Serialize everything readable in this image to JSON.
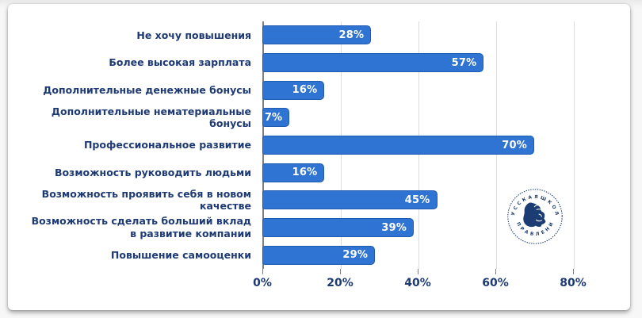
{
  "chart_data": {
    "type": "bar",
    "orientation": "horizontal",
    "title": "",
    "xlabel": "",
    "ylabel": "",
    "categories": [
      "Не хочу повышения",
      "Более высокая зарплата",
      "Дополнительные денежные бонусы",
      "Дополнительные нематериальные\nбонусы",
      "Профессиональное развитие",
      "Возможность руководить людьми",
      "Возможность проявить себя в новом\nкачестве",
      "Возможность сделать больший вклад\nв развитие компании",
      "Повышение самооценки"
    ],
    "values": [
      28,
      57,
      16,
      7,
      70,
      16,
      45,
      39,
      29
    ],
    "value_labels": [
      "28%",
      "57%",
      "16%",
      "7%",
      "70%",
      "16%",
      "45%",
      "39%",
      "29%"
    ],
    "x_tick_values": [
      0,
      20,
      40,
      60,
      80
    ],
    "x_tick_labels": [
      "0%",
      "20%",
      "40%",
      "60%",
      "80%"
    ],
    "xlim": [
      0,
      92
    ],
    "grid": "vertical",
    "legend": "none",
    "bar_color": "#2f74d2",
    "bar_border_color": "#1f5bb0",
    "value_label_color": "#ffffff",
    "category_label_color": "#1e3a74",
    "axis_line_color": "#7f7f7f",
    "gridline_color": "#dcdcdc"
  },
  "logo": {
    "top_text": "• Р У С С К А Я   Ш К О Л А •",
    "bottom_text": "У П Р А В Л Е Н И Я",
    "color": "#1c3c74"
  }
}
